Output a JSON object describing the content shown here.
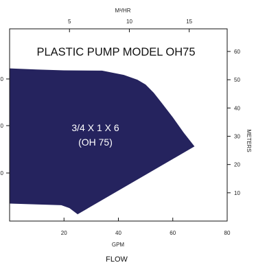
{
  "chart_data": {
    "type": "area",
    "title": "PLASTIC PUMP MODEL OH75",
    "region_label_line1": "3/4 X 1 X 6",
    "region_label_line2": "(OH 75)",
    "fill_color": "#25235e",
    "x_bottom": {
      "label": "GPM",
      "range": [
        0,
        80
      ],
      "ticks": [
        20,
        40,
        60,
        80
      ]
    },
    "x_top": {
      "label": "M³/HR",
      "range": [
        0,
        18.17
      ],
      "ticks": [
        5,
        10,
        15
      ]
    },
    "y_right": {
      "label": "METERS",
      "range": [
        0,
        68
      ],
      "ticks": [
        10,
        20,
        30,
        40,
        50,
        60
      ]
    },
    "left_ticks_labels": [
      "0",
      "0",
      "0"
    ],
    "footer_label": "FLOW",
    "envelope": {
      "x": [
        0,
        10,
        20,
        34,
        42,
        47,
        50,
        53,
        56,
        60,
        64,
        68,
        25,
        22,
        19,
        10,
        0
      ],
      "y": [
        54,
        53.6,
        53.3,
        53.2,
        51.7,
        50,
        48.3,
        45.4,
        41.7,
        36.7,
        31.3,
        26.4,
        2.4,
        4.6,
        5.6,
        5.9,
        6.2
      ]
    }
  }
}
